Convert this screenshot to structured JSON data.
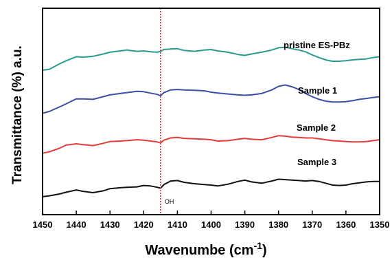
{
  "chart_data": {
    "type": "line",
    "title": "",
    "xlabel": "Wavenumbe (cm",
    "xlabel_superscript": "-1",
    "xlabel_suffix": ")",
    "ylabel": "Transmittance (%) a.u.",
    "xlim": [
      1450,
      1350
    ],
    "x_reversed": true,
    "y_ticks_shown": false,
    "grid": false,
    "x_ticks": [
      1450,
      1440,
      1430,
      1420,
      1410,
      1400,
      1390,
      1380,
      1370,
      1360,
      1350
    ],
    "annotation": {
      "label": "OH",
      "x": 1415,
      "line_color": "#e8332a",
      "line_style": "dotted"
    },
    "series": [
      {
        "name": "pristine ES-PBz",
        "color": "#2a9a8f",
        "x": [
          1450,
          1448,
          1445,
          1443,
          1440,
          1438,
          1435,
          1432,
          1430,
          1427,
          1425,
          1422,
          1420,
          1418,
          1416,
          1415,
          1414,
          1412,
          1410,
          1408,
          1405,
          1402,
          1400,
          1398,
          1395,
          1392,
          1390,
          1388,
          1385,
          1382,
          1380,
          1378,
          1376,
          1374,
          1372,
          1370,
          1368,
          1366,
          1364,
          1362,
          1360,
          1358,
          1356,
          1354,
          1352,
          1350
        ],
        "values": [
          3.22,
          3.24,
          3.36,
          3.43,
          3.52,
          3.51,
          3.53,
          3.58,
          3.62,
          3.65,
          3.67,
          3.64,
          3.65,
          3.63,
          3.62,
          3.64,
          3.68,
          3.69,
          3.7,
          3.66,
          3.64,
          3.67,
          3.68,
          3.65,
          3.62,
          3.57,
          3.55,
          3.58,
          3.62,
          3.67,
          3.72,
          3.73,
          3.7,
          3.67,
          3.63,
          3.56,
          3.5,
          3.45,
          3.42,
          3.42,
          3.43,
          3.45,
          3.46,
          3.47,
          3.5,
          3.52
        ]
      },
      {
        "name": "Sample 1",
        "color": "#3b4fa6",
        "x": [
          1450,
          1448,
          1445,
          1443,
          1440,
          1438,
          1435,
          1432,
          1430,
          1427,
          1425,
          1422,
          1420,
          1418,
          1416,
          1415,
          1414,
          1412,
          1410,
          1408,
          1405,
          1402,
          1400,
          1398,
          1395,
          1392,
          1390,
          1388,
          1385,
          1382,
          1380,
          1378,
          1376,
          1374,
          1372,
          1370,
          1368,
          1366,
          1364,
          1362,
          1360,
          1358,
          1356,
          1354,
          1352,
          1350
        ],
        "values": [
          2.26,
          2.3,
          2.4,
          2.47,
          2.58,
          2.58,
          2.57,
          2.63,
          2.67,
          2.7,
          2.72,
          2.75,
          2.74,
          2.71,
          2.68,
          2.65,
          2.72,
          2.78,
          2.79,
          2.78,
          2.77,
          2.76,
          2.73,
          2.71,
          2.69,
          2.67,
          2.66,
          2.67,
          2.7,
          2.78,
          2.86,
          2.89,
          2.85,
          2.79,
          2.7,
          2.63,
          2.57,
          2.53,
          2.51,
          2.51,
          2.52,
          2.54,
          2.57,
          2.59,
          2.61,
          2.63
        ]
      },
      {
        "name": "Sample 2",
        "color": "#e43b3b",
        "x": [
          1450,
          1448,
          1445,
          1443,
          1440,
          1438,
          1435,
          1432,
          1430,
          1427,
          1425,
          1422,
          1420,
          1418,
          1416,
          1415,
          1414,
          1412,
          1410,
          1408,
          1405,
          1402,
          1400,
          1398,
          1395,
          1392,
          1390,
          1388,
          1385,
          1382,
          1380,
          1378,
          1376,
          1374,
          1372,
          1370,
          1368,
          1366,
          1364,
          1362,
          1360,
          1358,
          1356,
          1354,
          1352,
          1350
        ],
        "values": [
          1.37,
          1.4,
          1.48,
          1.55,
          1.58,
          1.56,
          1.54,
          1.59,
          1.63,
          1.64,
          1.65,
          1.67,
          1.66,
          1.64,
          1.62,
          1.6,
          1.66,
          1.71,
          1.72,
          1.7,
          1.69,
          1.68,
          1.67,
          1.64,
          1.65,
          1.68,
          1.7,
          1.68,
          1.67,
          1.72,
          1.76,
          1.75,
          1.73,
          1.72,
          1.71,
          1.71,
          1.69,
          1.67,
          1.65,
          1.64,
          1.63,
          1.62,
          1.62,
          1.63,
          1.65,
          1.67
        ]
      },
      {
        "name": "Sample 3",
        "color": "#111111",
        "x": [
          1450,
          1448,
          1445,
          1443,
          1440,
          1438,
          1435,
          1432,
          1430,
          1427,
          1425,
          1422,
          1420,
          1418,
          1416,
          1415,
          1414,
          1412,
          1410,
          1408,
          1405,
          1402,
          1400,
          1398,
          1395,
          1392,
          1390,
          1388,
          1385,
          1382,
          1380,
          1378,
          1376,
          1374,
          1372,
          1370,
          1368,
          1366,
          1364,
          1362,
          1360,
          1358,
          1356,
          1354,
          1352,
          1350
        ],
        "values": [
          0.4,
          0.42,
          0.46,
          0.5,
          0.55,
          0.52,
          0.49,
          0.53,
          0.58,
          0.6,
          0.61,
          0.62,
          0.65,
          0.64,
          0.61,
          0.59,
          0.67,
          0.75,
          0.76,
          0.72,
          0.69,
          0.67,
          0.66,
          0.64,
          0.68,
          0.74,
          0.77,
          0.73,
          0.7,
          0.75,
          0.79,
          0.78,
          0.77,
          0.76,
          0.75,
          0.76,
          0.74,
          0.7,
          0.66,
          0.65,
          0.66,
          0.69,
          0.71,
          0.73,
          0.74,
          0.74
        ]
      }
    ]
  }
}
